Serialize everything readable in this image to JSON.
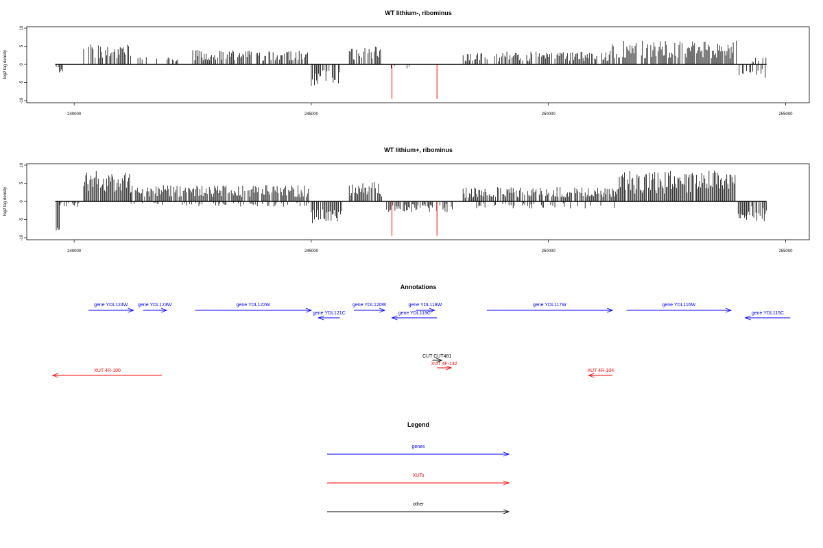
{
  "chart_data": [
    {
      "type": "bar",
      "title": "WT lithium-, ribominus",
      "ylabel": "log2 tag density",
      "xlim": [
        239000,
        255500
      ],
      "ylim": [
        -10,
        10
      ],
      "x_ticks": [
        240000,
        245000,
        250000,
        255000
      ],
      "y_ticks": [
        10,
        5,
        0,
        -5,
        -10
      ],
      "grid": false,
      "baseline_extent": [
        239600,
        254600
      ],
      "positive_regions": [
        {
          "start": 240200,
          "end": 241200,
          "max": 5.5,
          "density": 0.8
        },
        {
          "start": 241300,
          "end": 242200,
          "max": 2,
          "density": 0.25
        },
        {
          "start": 242500,
          "end": 244950,
          "max": 4,
          "density": 0.75
        },
        {
          "start": 245800,
          "end": 246500,
          "max": 5,
          "density": 0.75
        },
        {
          "start": 248200,
          "end": 251300,
          "max": 3.5,
          "density": 0.7
        },
        {
          "start": 251300,
          "end": 254000,
          "max": 6.5,
          "density": 0.8
        },
        {
          "start": 254300,
          "end": 254600,
          "max": 2,
          "density": 0.3
        }
      ],
      "negative_regions": [
        {
          "start": 239600,
          "end": 239800,
          "max": 2.5,
          "density": 0.6
        },
        {
          "start": 245000,
          "end": 245600,
          "max": 6,
          "density": 0.85
        },
        {
          "start": 246600,
          "end": 247500,
          "max": 1.5,
          "density": 0.2
        },
        {
          "start": 254000,
          "end": 254600,
          "max": 4,
          "density": 0.6
        }
      ],
      "highlights": [
        {
          "x": 246700,
          "value": -9.5,
          "color": "#ff0000"
        },
        {
          "x": 247650,
          "value": -9.5,
          "color": "#ff0000"
        }
      ]
    },
    {
      "type": "bar",
      "title": "WT lithium+, ribominus",
      "ylabel": "log2 tag density",
      "xlim": [
        239000,
        255500
      ],
      "ylim": [
        -10,
        10
      ],
      "x_ticks": [
        240000,
        245000,
        250000,
        255000
      ],
      "y_ticks": [
        10,
        5,
        0,
        -5,
        -10
      ],
      "grid": false,
      "baseline_extent": [
        239600,
        254600
      ],
      "positive_regions": [
        {
          "start": 240200,
          "end": 241200,
          "max": 8.5,
          "density": 0.95
        },
        {
          "start": 241200,
          "end": 244950,
          "max": 4.5,
          "density": 0.9
        },
        {
          "start": 245800,
          "end": 246500,
          "max": 5.5,
          "density": 0.85
        },
        {
          "start": 248200,
          "end": 251450,
          "max": 4,
          "density": 0.85
        },
        {
          "start": 251450,
          "end": 253950,
          "max": 8.5,
          "density": 0.98
        }
      ],
      "negative_regions": [
        {
          "start": 239600,
          "end": 239700,
          "max": 9.5,
          "density": 0.9
        },
        {
          "start": 239700,
          "end": 240100,
          "max": 1.5,
          "density": 0.6
        },
        {
          "start": 241200,
          "end": 244950,
          "max": 1.5,
          "density": 0.35
        },
        {
          "start": 245000,
          "end": 245650,
          "max": 6,
          "density": 0.85
        },
        {
          "start": 246500,
          "end": 248000,
          "max": 3,
          "density": 0.6
        },
        {
          "start": 248200,
          "end": 251450,
          "max": 2,
          "density": 0.2
        },
        {
          "start": 254000,
          "end": 254600,
          "max": 5.5,
          "density": 0.85
        }
      ],
      "highlights": [
        {
          "x": 246700,
          "value": -9.5,
          "color": "#ff0000"
        },
        {
          "x": 247650,
          "value": -9.5,
          "color": "#ff0000"
        }
      ]
    }
  ],
  "annotations": {
    "title": "Annotations",
    "features": [
      {
        "label": "gene YDL124W",
        "type": "gene",
        "start": 240300,
        "end": 241250,
        "strand": "+",
        "row": 1
      },
      {
        "label": "gene YDL123W",
        "type": "gene",
        "start": 241450,
        "end": 241950,
        "strand": "+",
        "row": 1
      },
      {
        "label": "gene YDL122W",
        "type": "gene",
        "start": 242550,
        "end": 245000,
        "strand": "+",
        "row": 1
      },
      {
        "label": "gene YDL121C",
        "type": "gene",
        "start": 245150,
        "end": 245600,
        "strand": "-",
        "row": 2
      },
      {
        "label": "gene YDL120W",
        "type": "gene",
        "start": 245900,
        "end": 246550,
        "strand": "+",
        "row": 1
      },
      {
        "label": "gene YDL119C",
        "type": "gene",
        "start": 246700,
        "end": 247650,
        "strand": "-",
        "row": 2
      },
      {
        "label": "gene YDL118W",
        "type": "gene",
        "start": 247200,
        "end": 247600,
        "strand": "+",
        "row": 1
      },
      {
        "label": "gene YDL117W",
        "type": "gene",
        "start": 248700,
        "end": 251350,
        "strand": "+",
        "row": 1
      },
      {
        "label": "gene YDL116W",
        "type": "gene",
        "start": 251650,
        "end": 253850,
        "strand": "+",
        "row": 1
      },
      {
        "label": "gene YDL115C",
        "type": "gene",
        "start": 254150,
        "end": 255100,
        "strand": "-",
        "row": 2
      },
      {
        "label": "CUT CUT481",
        "type": "other",
        "start": 247550,
        "end": 247750,
        "strand": "+",
        "row": 3
      },
      {
        "label": "XUT 4F-132",
        "type": "xut",
        "start": 247650,
        "end": 247950,
        "strand": "+",
        "row": 4
      },
      {
        "label": "XUT 4R-100",
        "type": "xut",
        "start": 239550,
        "end": 241850,
        "strand": "-",
        "row": 5
      },
      {
        "label": "XUT 4R-104",
        "type": "xut",
        "start": 250850,
        "end": 251350,
        "strand": "-",
        "row": 5
      }
    ]
  },
  "legend": {
    "title": "Legend",
    "items": [
      {
        "label": "genes",
        "color": "#0000ff"
      },
      {
        "label": "XUTs",
        "color": "#ff0000"
      },
      {
        "label": "other",
        "color": "#000000"
      }
    ]
  },
  "colors": {
    "gene": "#0000ff",
    "xut": "#ff0000",
    "other": "#000000",
    "track": "#000000"
  }
}
